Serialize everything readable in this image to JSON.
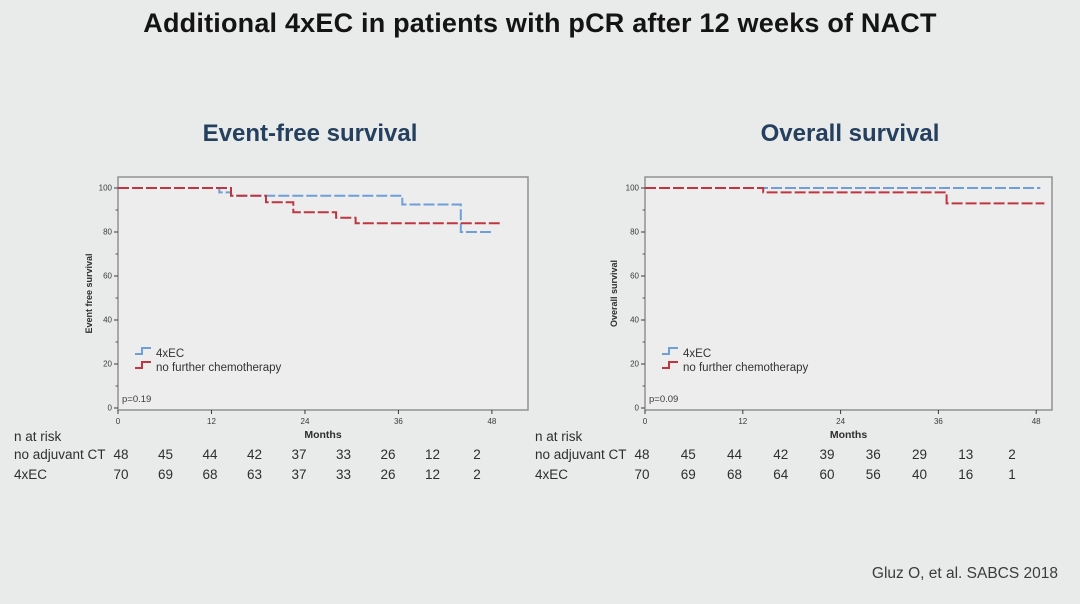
{
  "slide": {
    "title": "Additional 4xEC in patients with pCR after 12 weeks of NACT",
    "citation": "Gluz O, et al. SABCS 2018",
    "colors": {
      "background": "#e9eaea",
      "line_4xEC": "#6f9fd9",
      "line_no_chemo": "#bf3642",
      "panel_title": "#24405e",
      "title_text": "#141414",
      "plot_border": "#8f9193",
      "plot_background": "#ecedec",
      "axis_text": "#3a3a3a"
    }
  },
  "chart_data": [
    {
      "type": "line",
      "subtype": "kaplan-meier-step",
      "title": "Event-free survival",
      "xlabel": "Months",
      "ylabel": "Event free survival",
      "p_value": "p=0.19",
      "xticks": [
        0,
        12,
        24,
        36,
        48
      ],
      "yticks": [
        100,
        80,
        60,
        40,
        20,
        0
      ],
      "yticks_minor": [
        90,
        70,
        50,
        30,
        10
      ],
      "xlim": [
        0,
        53
      ],
      "ylim": [
        0,
        105
      ],
      "grid": false,
      "legend_position": "lower-left-inside",
      "series": [
        {
          "name": "4xEC",
          "color_key": "line_4xEC",
          "steps": [
            [
              0,
              100
            ],
            [
              13,
              98
            ],
            [
              14.5,
              96.5
            ],
            [
              36.5,
              92.5
            ],
            [
              44,
              80
            ]
          ],
          "end": 48
        },
        {
          "name": "no further chemotherapy",
          "color_key": "line_no_chemo",
          "steps": [
            [
              0,
              100
            ],
            [
              14.5,
              96.5
            ],
            [
              19,
              93.5
            ],
            [
              22.5,
              89
            ],
            [
              28,
              86.5
            ],
            [
              30.5,
              84
            ]
          ],
          "end": 49
        }
      ],
      "n_at_risk": {
        "header": "n at risk",
        "rows": [
          {
            "label": "no adjuvant CT",
            "values": [
              48,
              45,
              44,
              42,
              37,
              33,
              26,
              12,
              2
            ]
          },
          {
            "label": "4xEC",
            "values": [
              70,
              69,
              68,
              63,
              37,
              33,
              26,
              12,
              2
            ]
          }
        ]
      }
    },
    {
      "type": "line",
      "subtype": "kaplan-meier-step",
      "title": "Overall survival",
      "xlabel": "Months",
      "ylabel": "Overall survival",
      "p_value": "p=0.09",
      "xticks": [
        0,
        12,
        24,
        36,
        48
      ],
      "yticks": [
        100,
        80,
        60,
        40,
        20,
        0
      ],
      "yticks_minor": [
        90,
        70,
        50,
        30,
        10
      ],
      "xlim": [
        0,
        50
      ],
      "ylim": [
        0,
        105
      ],
      "grid": false,
      "legend_position": "lower-left-inside",
      "series": [
        {
          "name": "4xEC",
          "color_key": "line_4xEC",
          "steps": [
            [
              0,
              100
            ]
          ],
          "end": 48.5
        },
        {
          "name": "no further chemotherapy",
          "color_key": "line_no_chemo",
          "steps": [
            [
              0,
              100
            ],
            [
              14.5,
              98
            ],
            [
              37,
              93
            ]
          ],
          "end": 49
        }
      ],
      "n_at_risk": {
        "header": "n at risk",
        "rows": [
          {
            "label": "no adjuvant CT",
            "values": [
              48,
              45,
              44,
              42,
              39,
              36,
              29,
              13,
              2
            ]
          },
          {
            "label": "4xEC",
            "values": [
              70,
              69,
              68,
              64,
              60,
              56,
              40,
              16,
              1
            ]
          }
        ]
      }
    }
  ]
}
